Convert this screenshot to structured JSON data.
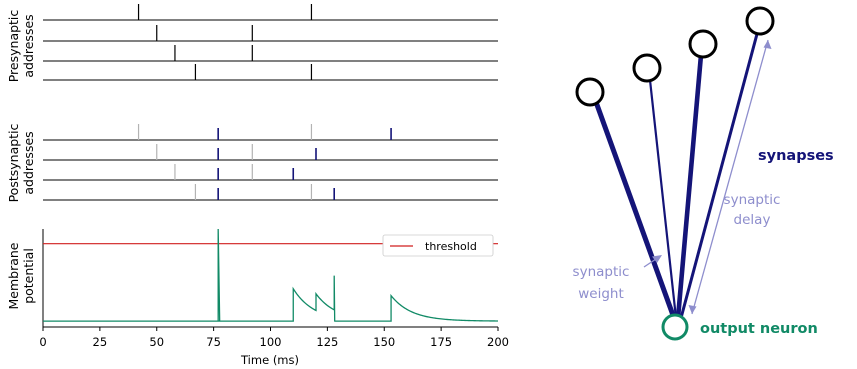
{
  "colors": {
    "navy": "#141478",
    "green": "#118a66",
    "lavender": "#8e8ecd",
    "gray": "#b3b3b3",
    "red": "#d11f1f"
  },
  "presynaptic": {
    "ylabel_line1": "Presynaptic",
    "ylabel_line2": "addresses",
    "spikes": [
      [
        42,
        118
      ],
      [
        50,
        92
      ],
      [
        58,
        92
      ],
      [
        67,
        118
      ]
    ]
  },
  "postsynaptic": {
    "ylabel_line1": "Postsynaptic",
    "ylabel_line2": "addresses",
    "input_ticks": [
      [
        42,
        118
      ],
      [
        50,
        92
      ],
      [
        58,
        92
      ],
      [
        67,
        118
      ]
    ],
    "output_ticks": [
      [
        77,
        153
      ],
      [
        77,
        120
      ],
      [
        77,
        110
      ],
      [
        77,
        128
      ]
    ]
  },
  "membrane": {
    "ylabel_line1": "Membrane",
    "ylabel_line2": "potential",
    "legend_label": "threshold",
    "xlabel": "Time (ms)",
    "xticks": [
      0,
      25,
      50,
      75,
      100,
      125,
      150,
      175,
      200
    ],
    "xlim": [
      0,
      200
    ],
    "rest": 0.06,
    "threshold": 0.85,
    "fire_time": 77,
    "fire_peak": 1.0,
    "psps": [
      {
        "t": 110,
        "jump": 0.33
      },
      {
        "t": 120,
        "jump": 0.17
      },
      {
        "t": 128,
        "jump": 0.35
      },
      {
        "t": 153,
        "jump": 0.26
      }
    ],
    "tau_ms": 9
  },
  "network": {
    "synapses_label": "synapses",
    "output_label": "output neuron",
    "synaptic_weight_line1": "synaptic",
    "synaptic_weight_line2": "weight",
    "synaptic_delay_line1": "synaptic",
    "synaptic_delay_line2": "delay"
  }
}
